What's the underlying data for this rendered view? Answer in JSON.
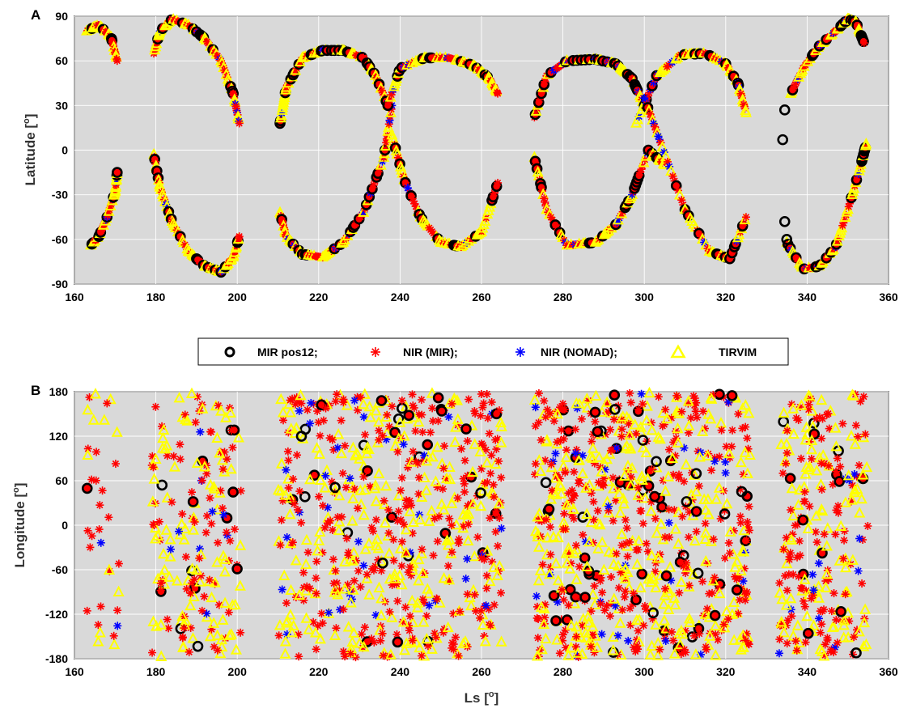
{
  "chart_data": [
    {
      "panel_label": "A",
      "type": "scatter",
      "xlabel": "Ls [",
      "ylabel": "Latitude [",
      "unit_superscript": "o",
      "xlim": [
        160,
        360
      ],
      "ylim": [
        -90,
        90
      ],
      "xticks": [
        160,
        180,
        200,
        220,
        240,
        260,
        280,
        300,
        320,
        340,
        360
      ],
      "yticks": [
        -90,
        -60,
        -30,
        0,
        30,
        60,
        90
      ],
      "grid": true,
      "background": "#d9d9d9",
      "tracks": [
        {
          "x": [
            163,
            166,
            169,
            170.5
          ],
          "y": [
            80,
            84,
            76,
            60
          ]
        },
        {
          "x": [
            164,
            166,
            168,
            170,
            170.5
          ],
          "y": [
            -64,
            -58,
            -45,
            -28,
            -15
          ]
        },
        {
          "x": [
            179.5,
            181,
            184,
            188,
            192,
            196,
            199,
            200.5
          ],
          "y": [
            65,
            80,
            88,
            84,
            75,
            60,
            38,
            18
          ]
        },
        {
          "x": [
            179.5,
            181,
            184,
            188,
            192,
            196,
            199,
            200.5
          ],
          "y": [
            -3,
            -25,
            -48,
            -68,
            -78,
            -82,
            -72,
            -58
          ]
        },
        {
          "x": [
            210.5,
            212,
            216,
            221,
            226,
            231,
            234,
            237
          ],
          "y": [
            18,
            42,
            62,
            67,
            67,
            62,
            50,
            30
          ]
        },
        {
          "x": [
            210.5,
            212,
            216,
            221,
            226,
            231,
            236,
            238
          ],
          "y": [
            -42,
            -58,
            -70,
            -72,
            -62,
            -42,
            -5,
            30
          ]
        },
        {
          "x": [
            237,
            240,
            246,
            252,
            258,
            262,
            264
          ],
          "y": [
            30,
            55,
            62,
            62,
            57,
            48,
            38
          ]
        },
        {
          "x": [
            238,
            241,
            245,
            250,
            255,
            260,
            264
          ],
          "y": [
            10,
            -20,
            -45,
            -62,
            -65,
            -55,
            -22
          ]
        },
        {
          "x": [
            273,
            276,
            281,
            288,
            293,
            297,
            300
          ],
          "y": [
            22,
            50,
            60,
            61,
            58,
            48,
            30
          ]
        },
        {
          "x": [
            273,
            276,
            281,
            288,
            293,
            297,
            301,
            305
          ],
          "y": [
            -5,
            -40,
            -64,
            -62,
            -50,
            -30,
            0,
            -10
          ]
        },
        {
          "x": [
            298,
            303,
            309,
            315,
            320,
            323,
            325
          ],
          "y": [
            18,
            50,
            64,
            65,
            58,
            45,
            25
          ]
        },
        {
          "x": [
            300,
            304,
            310,
            316,
            321,
            325
          ],
          "y": [
            35,
            5,
            -40,
            -68,
            -73,
            -45
          ]
        },
        {
          "x": [
            336,
            339,
            343,
            347,
            350,
            352,
            354
          ],
          "y": [
            38,
            55,
            70,
            80,
            88,
            86,
            72
          ]
        },
        {
          "x": [
            335,
            339,
            343,
            347,
            350,
            353,
            354.5
          ],
          "y": [
            -62,
            -80,
            -78,
            -65,
            -40,
            -12,
            4
          ]
        }
      ],
      "extra_mir_points": [
        {
          "x": 334,
          "y": 7
        },
        {
          "x": 334.5,
          "y": 27
        },
        {
          "x": 334.5,
          "y": -48
        },
        {
          "x": 335,
          "y": -60
        }
      ]
    },
    {
      "panel_label": "B",
      "type": "scatter",
      "xlabel": "Ls [",
      "ylabel": "Longitude [",
      "unit_superscript": "o",
      "xlim": [
        160,
        360
      ],
      "ylim": [
        -180,
        180
      ],
      "xticks": [
        160,
        180,
        200,
        220,
        240,
        260,
        280,
        300,
        320,
        340,
        360
      ],
      "yticks": [
        -180,
        -120,
        -60,
        0,
        60,
        120,
        180
      ],
      "grid": true,
      "background": "#d9d9d9",
      "ls_bands": [
        {
          "from": 163,
          "to": 171,
          "density": 0.5
        },
        {
          "from": 179,
          "to": 201,
          "density": 1.0
        },
        {
          "from": 210,
          "to": 238,
          "density": 1.2
        },
        {
          "from": 238,
          "to": 265,
          "density": 1.3
        },
        {
          "from": 273,
          "to": 305,
          "density": 1.6
        },
        {
          "from": 305,
          "to": 326,
          "density": 1.4
        },
        {
          "from": 333,
          "to": 355,
          "density": 1.3
        }
      ]
    }
  ],
  "legend": {
    "items": [
      {
        "label": "MIR pos12;",
        "marker": "circle",
        "color": "#000000"
      },
      {
        "label": "NIR (MIR);",
        "marker": "asterisk",
        "color": "#ff0000"
      },
      {
        "label": "NIR (NOMAD);",
        "marker": "asterisk",
        "color": "#0000ff"
      },
      {
        "label": "TIRVIM",
        "marker": "triangle",
        "color": "#ffff00"
      }
    ]
  },
  "colors": {
    "mir": "#000000",
    "nir_mir": "#ff0000",
    "nir_nomad": "#0000ff",
    "tirvim": "#ffff00",
    "panel_bg": "#d9d9d9",
    "grid": "#ffffff"
  }
}
